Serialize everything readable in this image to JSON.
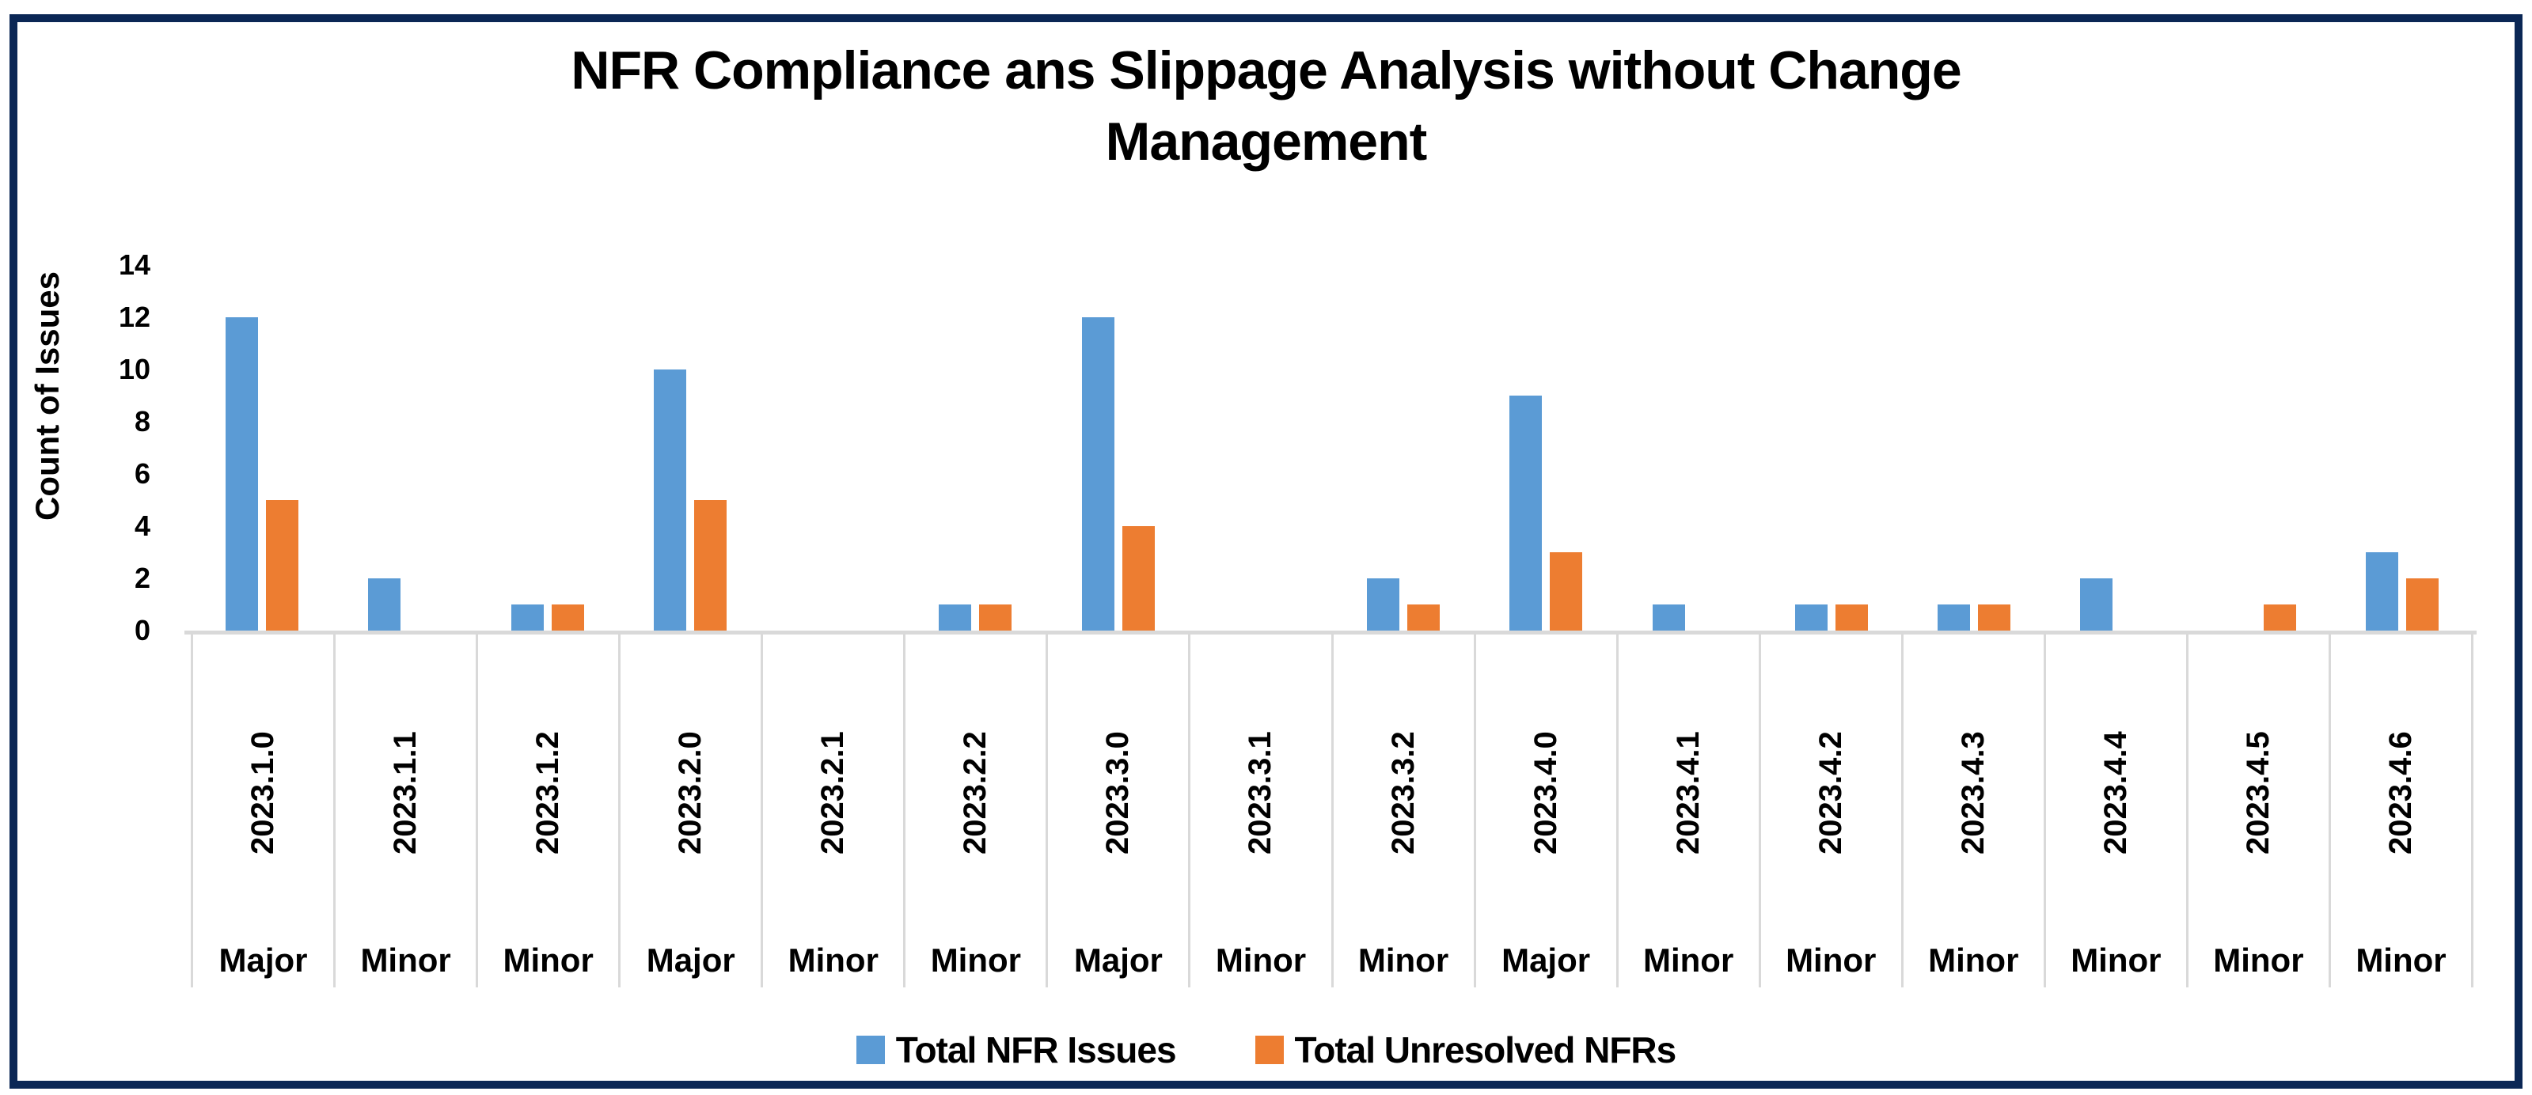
{
  "title": {
    "line1": "NFR Compliance ans Slippage Analysis without Change",
    "line2": "Management"
  },
  "colors": {
    "frame_border": "#0b2755",
    "axis_line": "#d9d9d9",
    "text": "#000000",
    "series_blue": "#5B9BD5",
    "series_orange": "#ED7D31"
  },
  "y_axis": {
    "title": "Count of Issues",
    "min": 0,
    "max": 14,
    "step": 2,
    "ticks": [
      0,
      2,
      4,
      6,
      8,
      10,
      12,
      14
    ]
  },
  "legend": {
    "items": [
      {
        "label": "Total NFR Issues",
        "color": "#5B9BD5"
      },
      {
        "label": "Total Unresolved NFRs",
        "color": "#ED7D31"
      }
    ]
  },
  "chart_data": {
    "type": "bar",
    "title": "NFR Compliance ans Slippage Analysis without Change Management",
    "xlabel": "",
    "ylabel": "Count of Issues",
    "ylim": [
      0,
      14
    ],
    "y_tick_step": 2,
    "grid": false,
    "legend_position": "bottom",
    "categories": [
      "2023.1.0",
      "2023.1.1",
      "2023.1.2",
      "2023.2.0",
      "2023.2.1",
      "2023.2.2",
      "2023.3.0",
      "2023.3.1",
      "2023.3.2",
      "2023.4.0",
      "2023.4.1",
      "2023.4.2",
      "2023.4.3",
      "2023.4.4",
      "2023.4.5",
      "2023.4.6"
    ],
    "category_types": [
      "Major",
      "Minor",
      "Minor",
      "Major",
      "Minor",
      "Minor",
      "Major",
      "Minor",
      "Minor",
      "Major",
      "Minor",
      "Minor",
      "Minor",
      "Minor",
      "Minor",
      "Minor"
    ],
    "series": [
      {
        "name": "Total NFR Issues",
        "color": "#5B9BD5",
        "values": [
          12,
          2,
          1,
          10,
          0,
          1,
          12,
          0,
          2,
          9,
          1,
          1,
          1,
          2,
          0,
          3
        ]
      },
      {
        "name": "Total Unresolved NFRs",
        "color": "#ED7D31",
        "values": [
          5,
          0,
          1,
          5,
          0,
          1,
          4,
          0,
          1,
          3,
          0,
          1,
          1,
          0,
          1,
          2
        ]
      }
    ]
  }
}
